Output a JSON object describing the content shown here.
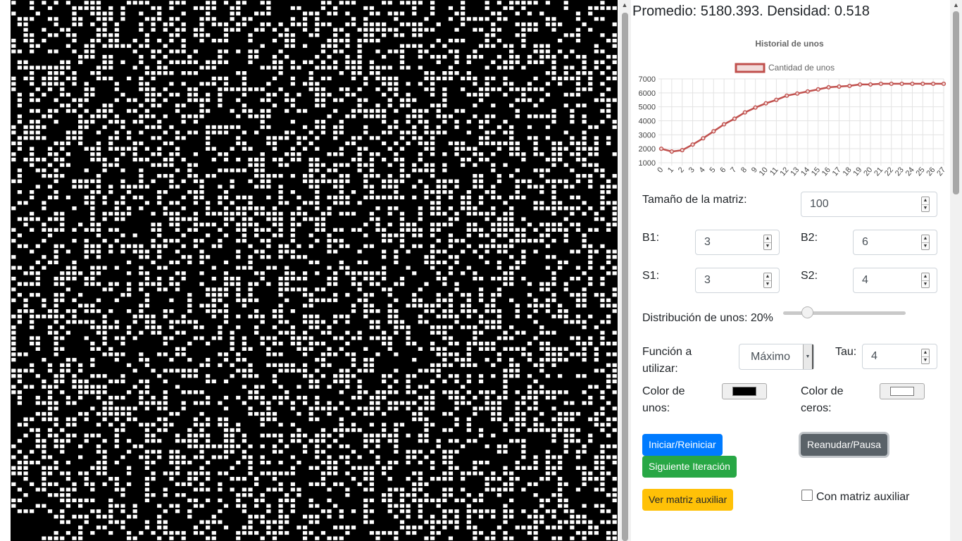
{
  "stats": {
    "text": "Promedio: 5180.393. Densidad: 0.518"
  },
  "grid": {
    "rows": 100,
    "cols": 100,
    "ones_color": "#000000",
    "zeros_color": "#ffffff"
  },
  "chart_data": {
    "type": "line",
    "title": "Historial de unos",
    "legend": "top",
    "grid": true,
    "ylim": [
      1000,
      7000
    ],
    "yticks": [
      "7000",
      "6000",
      "5000",
      "4000",
      "3000",
      "2000",
      "1000"
    ],
    "x": [
      0,
      1,
      2,
      3,
      4,
      5,
      6,
      7,
      8,
      9,
      10,
      11,
      12,
      13,
      14,
      15,
      16,
      17,
      18,
      19,
      20,
      21,
      22,
      23,
      24,
      25,
      26,
      27
    ],
    "series": [
      {
        "name": "Cantidad de unos",
        "color": "#c0504d",
        "values": [
          2000,
          1800,
          1900,
          2300,
          2750,
          3250,
          3750,
          4150,
          4600,
          4950,
          5250,
          5500,
          5800,
          5950,
          6100,
          6250,
          6400,
          6450,
          6500,
          6600,
          6600,
          6650,
          6650,
          6650,
          6650,
          6650,
          6650,
          6650
        ]
      }
    ]
  },
  "controls": {
    "matrix_size_label": "Tamaño de la matriz:",
    "matrix_size_value": "100",
    "b1_label": "B1:",
    "b1_value": "3",
    "b2_label": "B2:",
    "b2_value": "6",
    "s1_label": "S1:",
    "s1_value": "3",
    "s2_label": "S2:",
    "s2_value": "4",
    "distribution_label": "Distribución de unos: 20%",
    "distribution_percent": 20,
    "function_label_1": "Función a",
    "function_label_2": "utilizar:",
    "function_value": "Máximo",
    "tau_label": "Tau:",
    "tau_value": "4",
    "ones_color_label_1": "Color de",
    "ones_color_label_2": "unos:",
    "zeros_color_label_1": "Color de",
    "zeros_color_label_2": "ceros:"
  },
  "buttons": {
    "start_restart": "Iniciar/Reiniciar",
    "resume_pause": "Reanudar/Pausa",
    "next_iteration": "Siguiente Iteración",
    "view_aux_matrix": "Ver matriz auxiliar",
    "with_aux_matrix": "Con matriz auxiliar"
  },
  "icons": {
    "spinner": "spinner-arrows-icon",
    "dropdown": "chevron-down-icon",
    "scroll_up": "scroll-up-arrow-icon",
    "scroll_down": "scroll-down-arrow-icon"
  }
}
